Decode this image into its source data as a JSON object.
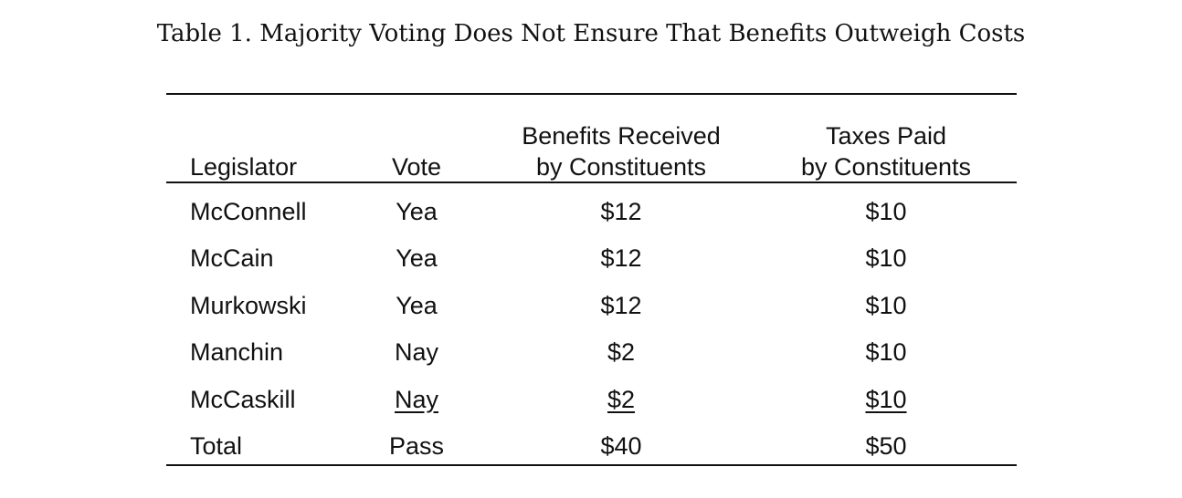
{
  "title": "Table 1. Majority Voting Does Not Ensure That Benefits Outweigh Costs",
  "table": {
    "header": [
      [
        "Legislator"
      ],
      [
        "Vote"
      ],
      [
        "Benefits Received",
        "by Constituents"
      ],
      [
        "Taxes Paid",
        "by Constituents"
      ]
    ],
    "rows": [
      [
        "McConnell",
        "Yea",
        "$12",
        "$10"
      ],
      [
        "McCain",
        "Yea",
        "$12",
        "$10"
      ],
      [
        "Murkowski",
        "Yea",
        "$12",
        "$10"
      ],
      [
        "Manchin",
        "Nay",
        "$2",
        "$10"
      ],
      [
        "McCaskill",
        "Nay",
        "$2",
        "$10"
      ],
      [
        "Total",
        "Pass",
        "$40",
        "$50"
      ]
    ]
  }
}
